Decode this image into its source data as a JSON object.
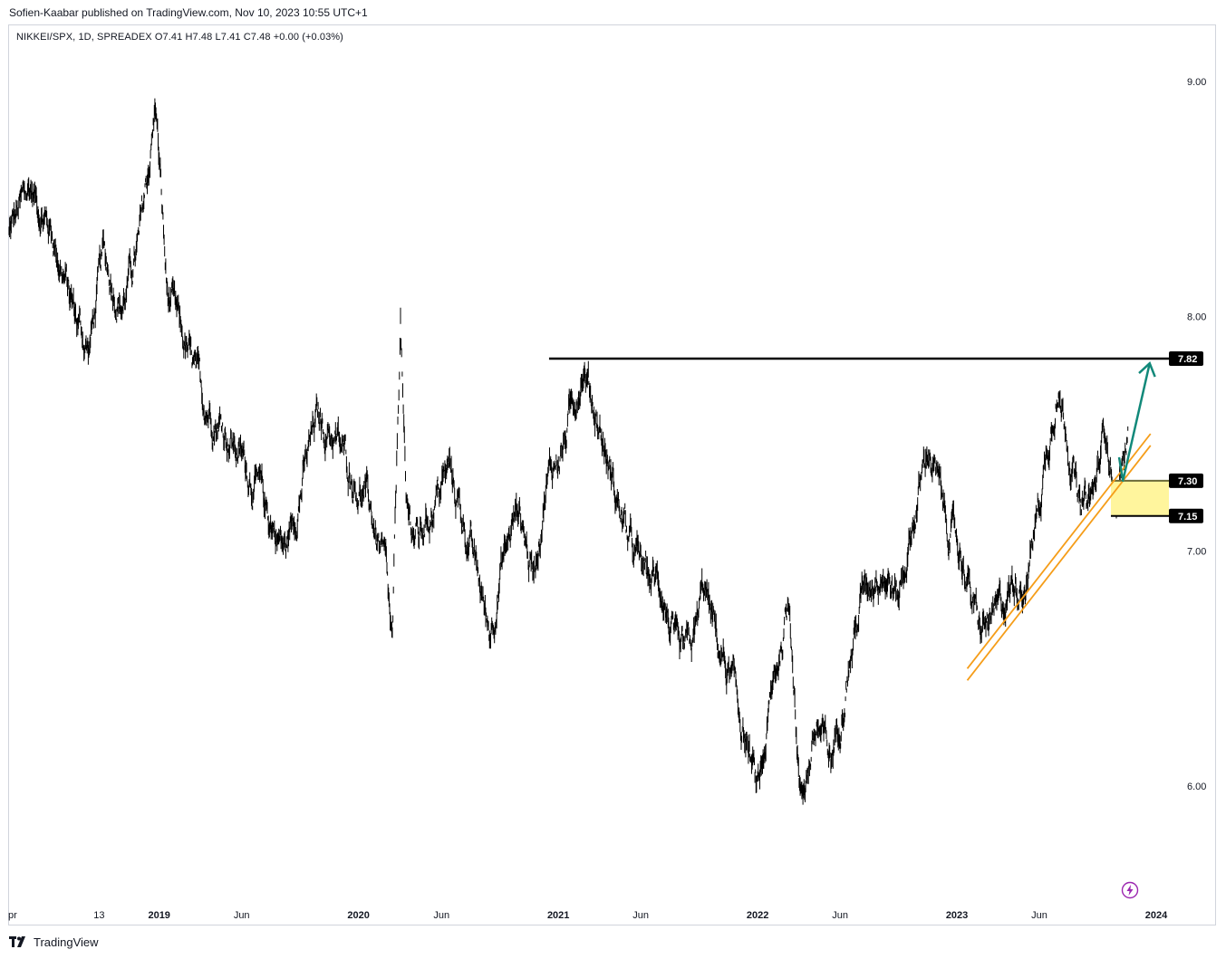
{
  "header": {
    "publisher_line": "Sofien-Kaabar published on TradingView.com, Nov 10, 2023 10:55 UTC+1"
  },
  "legend": {
    "text": "NIKKEI/SPX, 1D, SPREADEX  O7.41  H7.48  L7.41  C7.48  +0.00 (+0.03%)"
  },
  "footer": {
    "brand": "TradingView"
  },
  "colors": {
    "price_series": "#000000",
    "resistance_line": "#000000",
    "channel_lines": "#f59d19",
    "support_zone_fill": "#fff59d",
    "projection_arrow": "#12897a",
    "price_tag_bg": "#000000",
    "flash_icon": "#9c27b0"
  },
  "icons": {
    "brand_logo": "tradingview-logo-icon",
    "flash": "lightning-icon"
  },
  "chart_data": {
    "type": "line",
    "title": "",
    "symbol": "NIKKEI/SPX",
    "interval": "1D",
    "source": "SPREADEX",
    "ohlc": {
      "open": "7.41",
      "high": "7.48",
      "low": "7.41",
      "close": "7.48",
      "change": "+0.00 (+0.03%)"
    },
    "y_axis": {
      "ticks": [
        "9.00",
        "8.00",
        "7.00",
        "6.00"
      ],
      "tick_values": [
        9.0,
        8.0,
        7.0,
        6.0
      ],
      "ylim": [
        5.6,
        9.3
      ],
      "position": "right"
    },
    "x_axis": {
      "ticks": [
        {
          "label": "pr",
          "date": "2018-04-01",
          "year": false
        },
        {
          "label": "13",
          "date": "2018-09-13",
          "year": false
        },
        {
          "label": "2019",
          "date": "2019-01-01",
          "year": true
        },
        {
          "label": "Jun",
          "date": "2019-06-01",
          "year": false
        },
        {
          "label": "2020",
          "date": "2020-01-01",
          "year": true
        },
        {
          "label": "Jun",
          "date": "2020-06-01",
          "year": false
        },
        {
          "label": "2021",
          "date": "2021-01-01",
          "year": true
        },
        {
          "label": "Jun",
          "date": "2021-06-01",
          "year": false
        },
        {
          "label": "2022",
          "date": "2022-01-01",
          "year": true
        },
        {
          "label": "Jun",
          "date": "2022-06-01",
          "year": false
        },
        {
          "label": "2023",
          "date": "2023-01-01",
          "year": true
        },
        {
          "label": "Jun",
          "date": "2023-06-01",
          "year": false
        },
        {
          "label": "2024",
          "date": "2024-01-01",
          "year": true
        }
      ],
      "xlim": [
        "2018-04-01",
        "2024-01-01"
      ]
    },
    "series": [
      {
        "values": [
          [
            "2018-04-01",
            8.35
          ],
          [
            "2018-05-10",
            8.55
          ],
          [
            "2018-06-20",
            8.35
          ],
          [
            "2018-07-25",
            8.05
          ],
          [
            "2018-08-25",
            7.85
          ],
          [
            "2018-09-20",
            8.25
          ],
          [
            "2018-10-25",
            8.05
          ],
          [
            "2018-11-25",
            8.3
          ],
          [
            "2018-12-26",
            8.9
          ],
          [
            "2019-01-15",
            8.1
          ],
          [
            "2019-02-20",
            7.85
          ],
          [
            "2019-03-20",
            7.65
          ],
          [
            "2019-04-25",
            7.55
          ],
          [
            "2019-05-20",
            7.45
          ],
          [
            "2019-06-25",
            7.3
          ],
          [
            "2019-07-20",
            7.15
          ],
          [
            "2019-08-20",
            7.0
          ],
          [
            "2019-09-20",
            7.3
          ],
          [
            "2019-10-15",
            7.55
          ],
          [
            "2019-11-15",
            7.5
          ],
          [
            "2019-12-15",
            7.35
          ],
          [
            "2020-01-20",
            7.2
          ],
          [
            "2020-02-20",
            6.9
          ],
          [
            "2020-03-03",
            6.55
          ],
          [
            "2020-03-18",
            8.0
          ],
          [
            "2020-03-28",
            7.15
          ],
          [
            "2020-04-20",
            7.05
          ],
          [
            "2020-05-25",
            7.25
          ],
          [
            "2020-06-15",
            7.35
          ],
          [
            "2020-07-15",
            7.1
          ],
          [
            "2020-08-10",
            6.85
          ],
          [
            "2020-08-28",
            6.65
          ],
          [
            "2020-09-20",
            6.95
          ],
          [
            "2020-10-20",
            7.2
          ],
          [
            "2020-11-15",
            6.9
          ],
          [
            "2020-12-10",
            7.3
          ],
          [
            "2021-01-10",
            7.45
          ],
          [
            "2021-02-15",
            7.8
          ],
          [
            "2021-03-15",
            7.55
          ],
          [
            "2021-04-15",
            7.25
          ],
          [
            "2021-05-15",
            7.0
          ],
          [
            "2021-06-10",
            6.9
          ],
          [
            "2021-07-10",
            6.85
          ],
          [
            "2021-08-10",
            6.5
          ],
          [
            "2021-09-05",
            6.6
          ],
          [
            "2021-09-25",
            6.85
          ],
          [
            "2021-10-20",
            6.6
          ],
          [
            "2021-11-20",
            6.4
          ],
          [
            "2021-12-15",
            6.15
          ],
          [
            "2022-01-01",
            5.95
          ],
          [
            "2022-02-01",
            6.45
          ],
          [
            "2022-03-01",
            6.8
          ],
          [
            "2022-03-20",
            5.95
          ],
          [
            "2022-04-20",
            6.25
          ],
          [
            "2022-05-15",
            6.1
          ],
          [
            "2022-06-15",
            6.5
          ],
          [
            "2022-07-15",
            6.85
          ],
          [
            "2022-08-15",
            6.95
          ],
          [
            "2022-09-15",
            6.8
          ],
          [
            "2022-10-15",
            7.15
          ],
          [
            "2022-11-10",
            7.45
          ],
          [
            "2022-12-10",
            7.15
          ],
          [
            "2023-01-15",
            6.95
          ],
          [
            "2023-02-10",
            6.65
          ],
          [
            "2023-03-10",
            6.7
          ],
          [
            "2023-04-10",
            6.85
          ],
          [
            "2023-05-10",
            6.9
          ],
          [
            "2023-06-10",
            7.35
          ],
          [
            "2023-07-01",
            7.7
          ],
          [
            "2023-07-20",
            7.55
          ],
          [
            "2023-08-15",
            7.15
          ],
          [
            "2023-09-10",
            7.25
          ],
          [
            "2023-10-01",
            7.55
          ],
          [
            "2023-10-20",
            7.2
          ],
          [
            "2023-11-10",
            7.48
          ]
        ]
      }
    ],
    "annotations": {
      "resistance": {
        "value": 7.82,
        "label": "7.82",
        "from": "2020-12-15"
      },
      "support_zone": {
        "top": 7.3,
        "bottom": 7.15,
        "top_label": "7.30",
        "bottom_label": "7.15",
        "from": "2023-10-10"
      },
      "channel": {
        "from": [
          "2023-01-20",
          6.45
        ],
        "to": [
          "2023-12-15",
          7.45
        ],
        "gap": 0.05
      },
      "projection_arrow": {
        "from": [
          "2023-11-01",
          7.3
        ],
        "to": [
          "2023-12-20",
          7.8
        ],
        "start": [
          "2023-10-25",
          7.4
        ]
      }
    },
    "grid": false,
    "legend": "top-left"
  }
}
